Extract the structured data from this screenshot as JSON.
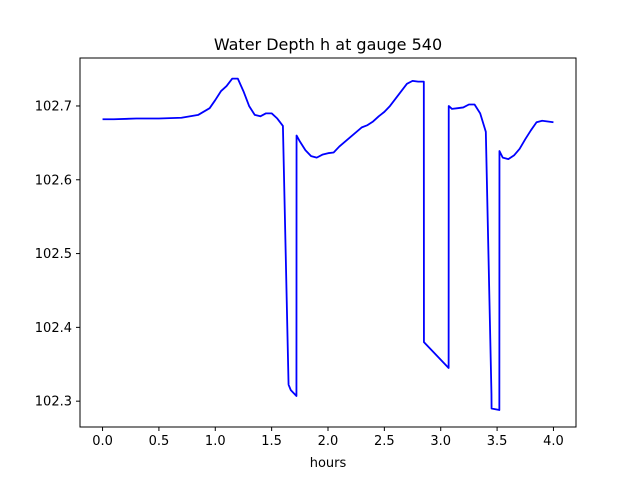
{
  "chart_data": {
    "type": "line",
    "title": "Water Depth h at gauge 540",
    "xlabel": "hours",
    "ylabel": "",
    "xlim": [
      -0.2,
      4.2
    ],
    "ylim": [
      102.265,
      102.765
    ],
    "xticks": [
      0.0,
      0.5,
      1.0,
      1.5,
      2.0,
      2.5,
      3.0,
      3.5,
      4.0
    ],
    "xtick_labels": [
      "0.0",
      "0.5",
      "1.0",
      "1.5",
      "2.0",
      "2.5",
      "3.0",
      "3.5",
      "4.0"
    ],
    "yticks": [
      102.3,
      102.4,
      102.5,
      102.6,
      102.7
    ],
    "ytick_labels": [
      "102.3",
      "102.4",
      "102.5",
      "102.6",
      "102.7"
    ],
    "grid": false,
    "series": [
      {
        "color": "#0000ff",
        "x": [
          0.0,
          0.1,
          0.3,
          0.5,
          0.7,
          0.85,
          0.95,
          1.0,
          1.05,
          1.1,
          1.15,
          1.2,
          1.25,
          1.3,
          1.35,
          1.4,
          1.45,
          1.5,
          1.55,
          1.6,
          1.65,
          1.651,
          1.67,
          1.72,
          1.721,
          1.75,
          1.8,
          1.85,
          1.9,
          1.95,
          2.0,
          2.05,
          2.1,
          2.2,
          2.3,
          2.35,
          2.4,
          2.45,
          2.5,
          2.55,
          2.6,
          2.65,
          2.7,
          2.75,
          2.8,
          2.85,
          2.851,
          3.07,
          3.071,
          3.1,
          3.15,
          3.2,
          3.25,
          3.3,
          3.35,
          3.4,
          3.45,
          3.451,
          3.52,
          3.521,
          3.55,
          3.6,
          3.65,
          3.7,
          3.75,
          3.8,
          3.85,
          3.9,
          3.95,
          4.0
        ],
        "values": [
          102.682,
          102.682,
          102.683,
          102.683,
          102.684,
          102.688,
          102.697,
          102.708,
          102.72,
          102.727,
          102.737,
          102.737,
          102.72,
          102.7,
          102.688,
          102.686,
          102.69,
          102.69,
          102.683,
          102.673,
          102.323,
          102.322,
          102.315,
          102.307,
          102.66,
          102.652,
          102.64,
          102.632,
          102.63,
          102.634,
          102.636,
          102.637,
          102.645,
          102.658,
          102.671,
          102.674,
          102.679,
          102.686,
          102.692,
          102.7,
          102.71,
          102.72,
          102.73,
          102.734,
          102.733,
          102.733,
          102.38,
          102.345,
          102.7,
          102.696,
          102.697,
          102.698,
          102.702,
          102.702,
          102.69,
          102.665,
          102.31,
          102.29,
          102.288,
          102.639,
          102.63,
          102.628,
          102.633,
          102.642,
          102.655,
          102.667,
          102.678,
          102.68,
          102.679,
          102.678
        ]
      }
    ]
  }
}
